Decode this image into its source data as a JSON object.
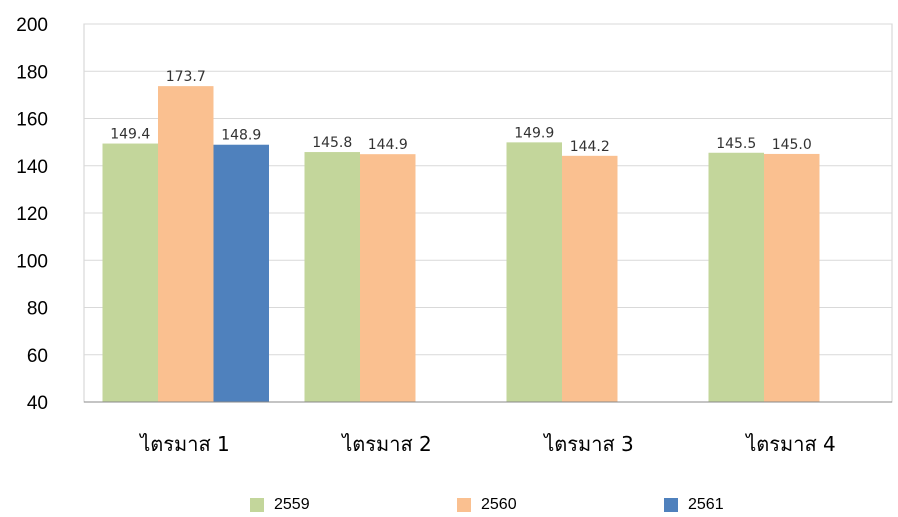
{
  "chart_data": {
    "type": "bar",
    "categories": [
      "ไตรมาส 1",
      "ไตรมาส 2",
      "ไตรมาส 3",
      "ไตรมาส 4"
    ],
    "series": [
      {
        "name": "2559",
        "color": "#C3D69B",
        "values": [
          149.4,
          145.8,
          149.9,
          145.5
        ],
        "labels": [
          "149.4",
          "145.8",
          "149.9",
          "145.5"
        ]
      },
      {
        "name": "2560",
        "color": "#FAC090",
        "values": [
          173.7,
          144.9,
          144.2,
          145.0
        ],
        "labels": [
          "173.7",
          "144.9",
          "144.2",
          "145.0"
        ]
      },
      {
        "name": "2561",
        "color": "#4F81BD",
        "values": [
          148.9,
          null,
          null,
          null
        ],
        "labels": [
          "148.9",
          null,
          null,
          null
        ]
      }
    ],
    "yticks": [
      "40",
      "60",
      "80",
      "100",
      "120",
      "140",
      "160",
      "180",
      "200"
    ],
    "ylim": [
      40,
      200
    ],
    "grid": true,
    "legend_position": "bottom",
    "title": "",
    "xlabel": "",
    "ylabel": ""
  }
}
